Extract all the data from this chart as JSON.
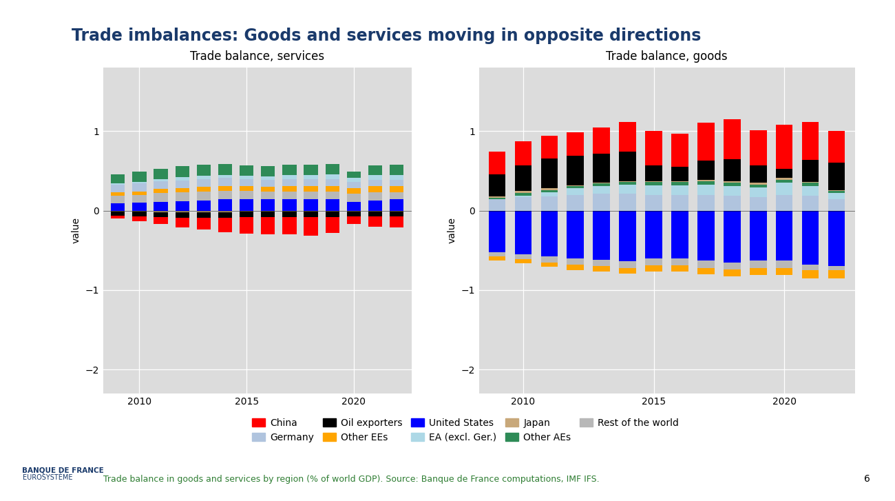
{
  "title": "Trade imbalances: Goods and services moving in opposite directions",
  "subtitle_left": "Trade balance, services",
  "subtitle_right": "Trade balance, goods",
  "ylabel": "value",
  "footnote": "Trade balance in goods and services by region (% of world GDP). Source: Banque de France computations, IMF IFS.",
  "page_number": "6",
  "years": [
    2009,
    2010,
    2011,
    2012,
    2013,
    2014,
    2015,
    2016,
    2017,
    2018,
    2019,
    2020,
    2021,
    2022
  ],
  "colors": {
    "China": "#FF0000",
    "EA_excl_ger": "#ADD8E6",
    "Germany": "#B0C4DE",
    "Japan": "#C8A87A",
    "Oil_exporters": "#000000",
    "Other_AEs": "#2E8B57",
    "Other_EEs": "#FFA500",
    "Rest_of_world": "#B8B8B8",
    "United_States": "#0000FF"
  },
  "services": {
    "China": [
      -0.04,
      -0.06,
      -0.09,
      -0.12,
      -0.15,
      -0.18,
      -0.21,
      -0.22,
      -0.22,
      -0.24,
      -0.2,
      -0.1,
      -0.13,
      -0.14
    ],
    "EA_excl_ger": [
      0.01,
      0.02,
      0.03,
      0.04,
      0.04,
      0.04,
      0.04,
      0.04,
      0.05,
      0.05,
      0.06,
      0.05,
      0.06,
      0.06
    ],
    "Germany": [
      0.1,
      0.1,
      0.1,
      0.1,
      0.1,
      0.1,
      0.09,
      0.09,
      0.09,
      0.09,
      0.09,
      0.08,
      0.08,
      0.08
    ],
    "Japan": [
      -0.01,
      -0.01,
      -0.02,
      -0.02,
      -0.02,
      -0.02,
      -0.01,
      -0.01,
      -0.01,
      -0.01,
      -0.01,
      -0.01,
      -0.01,
      -0.01
    ],
    "Oil_exporters": [
      -0.05,
      -0.06,
      -0.06,
      -0.07,
      -0.07,
      -0.07,
      -0.07,
      -0.07,
      -0.07,
      -0.07,
      -0.07,
      -0.06,
      -0.06,
      -0.06
    ],
    "Other_AEs": [
      0.12,
      0.13,
      0.13,
      0.14,
      0.14,
      0.14,
      0.13,
      0.13,
      0.13,
      0.13,
      0.13,
      0.08,
      0.12,
      0.13
    ],
    "Other_EEs": [
      0.04,
      0.04,
      0.05,
      0.05,
      0.06,
      0.06,
      0.06,
      0.06,
      0.07,
      0.07,
      0.07,
      0.07,
      0.08,
      0.08
    ],
    "Rest_of_world": [
      0.1,
      0.1,
      0.11,
      0.11,
      0.11,
      0.11,
      0.11,
      0.1,
      0.1,
      0.1,
      0.1,
      0.1,
      0.1,
      0.09
    ],
    "United_States": [
      0.09,
      0.1,
      0.11,
      0.12,
      0.13,
      0.14,
      0.14,
      0.14,
      0.14,
      0.14,
      0.14,
      0.11,
      0.13,
      0.14
    ]
  },
  "goods": {
    "China": [
      0.28,
      0.3,
      0.28,
      0.3,
      0.33,
      0.38,
      0.43,
      0.42,
      0.48,
      0.5,
      0.44,
      0.55,
      0.48,
      0.4
    ],
    "EA_excl_ger": [
      0.0,
      0.02,
      0.05,
      0.08,
      0.1,
      0.12,
      0.12,
      0.12,
      0.13,
      0.12,
      0.12,
      0.15,
      0.12,
      0.08
    ],
    "Germany": [
      0.14,
      0.17,
      0.18,
      0.2,
      0.21,
      0.21,
      0.2,
      0.2,
      0.2,
      0.19,
      0.17,
      0.2,
      0.19,
      0.14
    ],
    "Japan": [
      0.02,
      0.03,
      0.02,
      0.01,
      0.01,
      0.01,
      0.01,
      0.01,
      0.02,
      0.02,
      0.02,
      0.02,
      0.01,
      0.01
    ],
    "Oil_exporters": [
      0.28,
      0.32,
      0.38,
      0.37,
      0.37,
      0.37,
      0.2,
      0.18,
      0.24,
      0.28,
      0.22,
      0.12,
      0.28,
      0.34
    ],
    "Other_AEs": [
      0.02,
      0.03,
      0.03,
      0.03,
      0.03,
      0.03,
      0.04,
      0.04,
      0.04,
      0.04,
      0.04,
      0.04,
      0.04,
      0.03
    ],
    "Other_EEs": [
      -0.05,
      -0.05,
      -0.06,
      -0.07,
      -0.07,
      -0.07,
      -0.08,
      -0.08,
      -0.08,
      -0.09,
      -0.09,
      -0.09,
      -0.1,
      -0.1
    ],
    "Rest_of_world": [
      -0.06,
      -0.06,
      -0.07,
      -0.08,
      -0.08,
      -0.08,
      -0.09,
      -0.09,
      -0.09,
      -0.09,
      -0.09,
      -0.09,
      -0.07,
      -0.05
    ],
    "United_States": [
      -0.52,
      -0.55,
      -0.58,
      -0.6,
      -0.62,
      -0.64,
      -0.6,
      -0.6,
      -0.63,
      -0.65,
      -0.63,
      -0.63,
      -0.68,
      -0.7
    ]
  },
  "ylim": [
    -2.3,
    1.8
  ],
  "yticks": [
    -2,
    -1,
    0,
    1
  ],
  "background_color": "#DCDCDC",
  "bar_width": 0.65
}
